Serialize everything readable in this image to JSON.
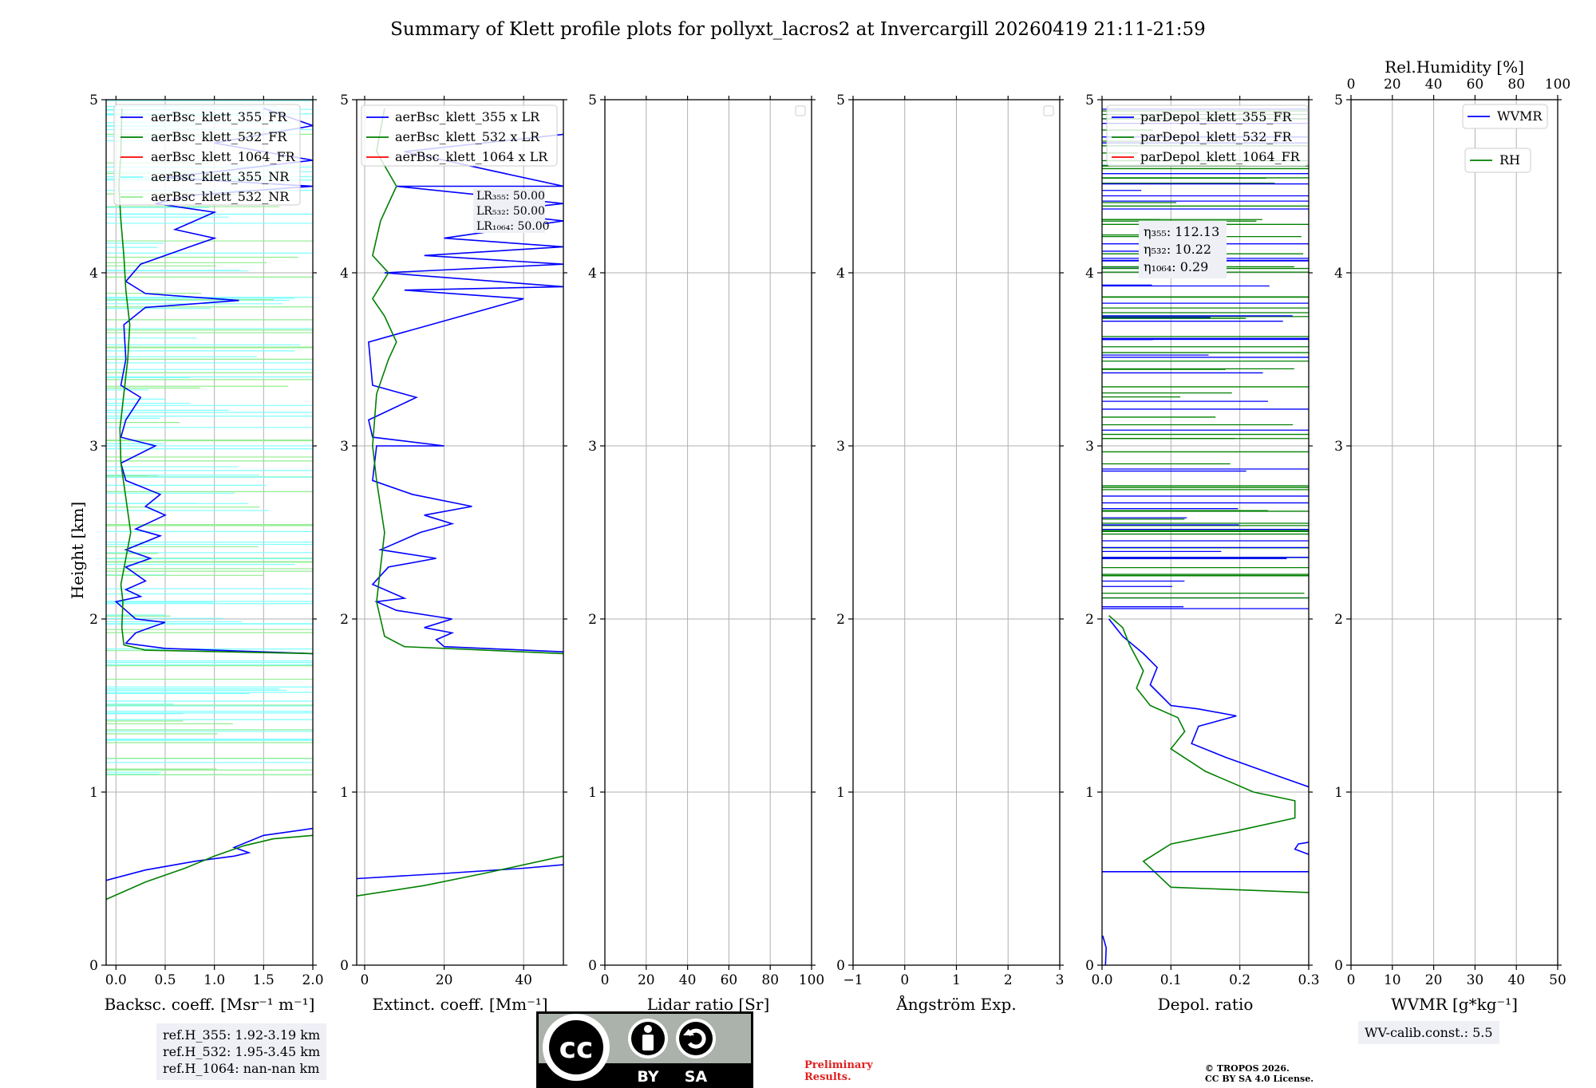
{
  "figure": {
    "title": "Summary of Klett profile plots for pollyxt_lacros2 at Invercargill 20260419 21:11-21:59",
    "ylabel": "Height [km]",
    "ref_heights": [
      "ref.H_355: 1.92-3.19 km",
      "ref.H_532: 1.95-3.45 km",
      "ref.H_1064: nan-nan km"
    ],
    "wv_calib": "WV-calib.const.: 5.5",
    "preliminary": [
      "Preliminary",
      "Results."
    ],
    "copyright": [
      "© TROPOS 2026.",
      "CC BY SA 4.0 License."
    ],
    "license_badge": {
      "by": "BY",
      "sa": "SA",
      "cc": "cc"
    }
  },
  "colors": {
    "blue": "#0000ff",
    "green": "#008000",
    "red": "#ff0000",
    "cyan": "#7fffff",
    "lightgreen": "#90ee90",
    "grid": "#b0b0b0",
    "legend_bg": "#ffffff",
    "ann_bg": "#eef0f6"
  },
  "chart_data": [
    {
      "type": "line",
      "name": "backscatter",
      "xlabel": "Backsc. coeff. [Msr⁻¹ m⁻¹]",
      "xlim": [
        -0.1,
        2.0
      ],
      "ylim": [
        0,
        5
      ],
      "xticks": [
        0.0,
        0.5,
        1.0,
        1.5,
        2.0
      ],
      "xticklabels": [
        "0.0",
        "0.5",
        "1.0",
        "1.5",
        "2.0"
      ],
      "yticks": [
        0,
        1,
        2,
        3,
        4,
        5
      ],
      "legend": [
        "aerBsc_klett_355_FR",
        "aerBsc_klett_532_FR",
        "aerBsc_klett_1064_FR",
        "aerBsc_klett_355_NR",
        "aerBsc_klett_532_NR"
      ],
      "series": [
        {
          "name": "aerBsc_klett_355_FR",
          "color": "blue",
          "points": [
            [
              -0.1,
              0.49
            ],
            [
              0.3,
              0.55
            ],
            [
              0.8,
              0.6
            ],
            [
              1.2,
              0.63
            ],
            [
              1.35,
              0.65
            ],
            [
              1.2,
              0.68
            ],
            [
              1.5,
              0.75
            ],
            [
              2.0,
              0.79
            ]
          ]
        },
        {
          "name": "aerBsc_klett_532_FR",
          "color": "green",
          "points": [
            [
              -0.1,
              0.38
            ],
            [
              0.3,
              0.48
            ],
            [
              0.7,
              0.56
            ],
            [
              1.0,
              0.63
            ],
            [
              1.3,
              0.69
            ],
            [
              1.6,
              0.73
            ],
            [
              2.0,
              0.75
            ]
          ]
        },
        {
          "name": "aerBsc_klett_355_FR_upper",
          "color": "blue",
          "points": [
            [
              2.0,
              1.8
            ],
            [
              0.5,
              1.83
            ],
            [
              0.1,
              1.86
            ],
            [
              0.2,
              1.92
            ],
            [
              0.35,
              1.95
            ],
            [
              0.5,
              1.98
            ],
            [
              0.2,
              2.0
            ],
            [
              0.1,
              2.05
            ],
            [
              0.0,
              2.1
            ],
            [
              0.25,
              2.13
            ],
            [
              0.1,
              2.17
            ],
            [
              0.3,
              2.22
            ],
            [
              0.1,
              2.3
            ],
            [
              0.35,
              2.35
            ],
            [
              0.1,
              2.4
            ],
            [
              0.45,
              2.48
            ],
            [
              0.2,
              2.52
            ],
            [
              0.5,
              2.6
            ],
            [
              0.3,
              2.65
            ],
            [
              0.45,
              2.72
            ],
            [
              0.1,
              2.8
            ],
            [
              0.05,
              2.9
            ],
            [
              0.4,
              3.0
            ],
            [
              0.05,
              3.05
            ],
            [
              0.1,
              3.15
            ],
            [
              0.25,
              3.28
            ],
            [
              0.05,
              3.35
            ],
            [
              0.1,
              3.5
            ],
            [
              0.08,
              3.7
            ],
            [
              0.3,
              3.8
            ],
            [
              1.25,
              3.84
            ],
            [
              0.3,
              3.88
            ],
            [
              0.1,
              3.95
            ],
            [
              0.25,
              4.05
            ],
            [
              0.75,
              4.15
            ],
            [
              1.0,
              4.2
            ],
            [
              0.6,
              4.25
            ],
            [
              1.0,
              4.35
            ],
            [
              0.4,
              4.4
            ],
            [
              0.8,
              4.45
            ],
            [
              2.0,
              4.5
            ],
            [
              0.5,
              4.55
            ],
            [
              2.0,
              4.65
            ],
            [
              1.0,
              4.75
            ],
            [
              2.0,
              4.85
            ],
            [
              1.5,
              4.95
            ]
          ]
        },
        {
          "name": "aerBsc_klett_532_FR_upper",
          "color": "green",
          "points": [
            [
              2.0,
              1.8
            ],
            [
              0.3,
              1.82
            ],
            [
              0.08,
              1.85
            ],
            [
              0.06,
              1.95
            ],
            [
              0.07,
              2.1
            ],
            [
              0.05,
              2.2
            ],
            [
              0.1,
              2.35
            ],
            [
              0.15,
              2.5
            ],
            [
              0.1,
              2.7
            ],
            [
              0.05,
              2.9
            ],
            [
              0.04,
              3.1
            ],
            [
              0.08,
              3.3
            ],
            [
              0.12,
              3.5
            ],
            [
              0.14,
              3.7
            ],
            [
              0.1,
              3.9
            ],
            [
              0.08,
              4.1
            ],
            [
              0.05,
              4.3
            ],
            [
              0.03,
              4.5
            ],
            [
              0.05,
              4.7
            ],
            [
              0.06,
              4.95
            ]
          ]
        }
      ]
    },
    {
      "type": "line",
      "name": "extinction",
      "xlabel": "Extinct. coeff. [Mm⁻¹]",
      "xlim": [
        -2,
        50
      ],
      "ylim": [
        0,
        5
      ],
      "xticks": [
        0,
        20,
        40
      ],
      "xticklabels": [
        "0",
        "20",
        "40"
      ],
      "yticks": [
        0,
        1,
        2,
        3,
        4,
        5
      ],
      "legend": [
        "aerBsc_klett_355 x LR",
        "aerBsc_klett_532 x LR",
        "aerBsc_klett_1064 x LR"
      ],
      "annotation": [
        "LR₃₅₅: 50.00",
        "LR₅₃₂: 50.00",
        "LR₁₀₆₄: 50.00"
      ],
      "series": [
        {
          "name": "aerBsc_klett_355 x LR",
          "color": "blue",
          "points": [
            [
              -2,
              0.5
            ],
            [
              20,
              0.53
            ],
            [
              40,
              0.56
            ],
            [
              50,
              0.58
            ]
          ]
        },
        {
          "name": "aerBsc_klett_532 x LR",
          "color": "green",
          "points": [
            [
              -2,
              0.4
            ],
            [
              15,
              0.46
            ],
            [
              30,
              0.53
            ],
            [
              50,
              0.63
            ]
          ]
        },
        {
          "name": "aerBsc_klett_355 x LR_upper",
          "color": "blue",
          "points": [
            [
              50,
              1.81
            ],
            [
              20,
              1.84
            ],
            [
              18,
              1.88
            ],
            [
              22,
              1.92
            ],
            [
              15,
              1.95
            ],
            [
              22,
              2.0
            ],
            [
              8,
              2.05
            ],
            [
              3,
              2.1
            ],
            [
              10,
              2.12
            ],
            [
              2,
              2.2
            ],
            [
              6,
              2.3
            ],
            [
              18,
              2.35
            ],
            [
              4,
              2.4
            ],
            [
              14,
              2.5
            ],
            [
              22,
              2.55
            ],
            [
              15,
              2.6
            ],
            [
              27,
              2.65
            ],
            [
              12,
              2.72
            ],
            [
              2,
              2.8
            ],
            [
              3,
              3.0
            ],
            [
              20,
              3.0
            ],
            [
              2,
              3.05
            ],
            [
              1,
              3.15
            ],
            [
              13,
              3.28
            ],
            [
              2,
              3.35
            ],
            [
              1,
              3.6
            ],
            [
              40,
              3.85
            ],
            [
              10,
              3.9
            ],
            [
              50,
              3.92
            ],
            [
              5,
              4.0
            ],
            [
              50,
              4.05
            ],
            [
              15,
              4.1
            ],
            [
              50,
              4.15
            ],
            [
              20,
              4.2
            ],
            [
              50,
              4.3
            ],
            [
              30,
              4.35
            ],
            [
              50,
              4.4
            ],
            [
              8,
              4.5
            ],
            [
              50,
              4.5
            ],
            [
              10,
              4.7
            ],
            [
              50,
              4.8
            ]
          ]
        },
        {
          "name": "aerBsc_klett_532 x LR_upper",
          "color": "green",
          "points": [
            [
              50,
              1.8
            ],
            [
              10,
              1.84
            ],
            [
              5,
              1.9
            ],
            [
              4,
              2.0
            ],
            [
              3,
              2.1
            ],
            [
              4,
              2.3
            ],
            [
              5,
              2.5
            ],
            [
              3,
              2.8
            ],
            [
              2,
              3.0
            ],
            [
              3,
              3.3
            ],
            [
              6,
              3.5
            ],
            [
              8,
              3.6
            ],
            [
              5,
              3.75
            ],
            [
              2,
              3.85
            ],
            [
              6,
              4.0
            ],
            [
              2,
              4.1
            ],
            [
              4,
              4.3
            ],
            [
              8,
              4.5
            ],
            [
              3,
              4.7
            ],
            [
              5,
              4.95
            ]
          ]
        }
      ]
    },
    {
      "type": "line",
      "name": "lidar_ratio",
      "xlabel": "Lidar ratio [Sr]",
      "xlim": [
        0,
        100
      ],
      "ylim": [
        0,
        5
      ],
      "xticks": [
        0,
        20,
        40,
        60,
        80,
        100
      ],
      "xticklabels": [
        "0",
        "20",
        "40",
        "60",
        "80",
        "100"
      ],
      "yticks": [
        0,
        1,
        2,
        3,
        4,
        5
      ],
      "series": []
    },
    {
      "type": "line",
      "name": "angstrom",
      "xlabel": "Ångström Exp.",
      "xlim": [
        -1,
        3
      ],
      "ylim": [
        0,
        5
      ],
      "xticks": [
        -1,
        0,
        1,
        2,
        3
      ],
      "xticklabels": [
        "−1",
        "0",
        "1",
        "2",
        "3"
      ],
      "yticks": [
        0,
        1,
        2,
        3,
        4,
        5
      ],
      "series": []
    },
    {
      "type": "line",
      "name": "depol",
      "xlabel": "Depol. ratio",
      "xlim": [
        0,
        0.3
      ],
      "ylim": [
        0,
        5
      ],
      "xticks": [
        0.0,
        0.1,
        0.2,
        0.3
      ],
      "xticklabels": [
        "0.0",
        "0.1",
        "0.2",
        "0.3"
      ],
      "yticks": [
        0,
        1,
        2,
        3,
        4,
        5
      ],
      "legend": [
        "parDepol_klett_355_FR",
        "parDepol_klett_532_FR",
        "parDepol_klett_1064_FR"
      ],
      "annotation": [
        "η₃₅₅: 112.13",
        "η₅₃₂: 10.22",
        "η₁₀₆₄: 0.29"
      ],
      "series": [
        {
          "name": "parDepol_klett_355_FR",
          "color": "blue",
          "points": [
            [
              0.3,
              1.03
            ],
            [
              0.25,
              1.1
            ],
            [
              0.18,
              1.2
            ],
            [
              0.13,
              1.28
            ],
            [
              0.14,
              1.38
            ],
            [
              0.195,
              1.44
            ],
            [
              0.14,
              1.48
            ],
            [
              0.1,
              1.5
            ],
            [
              0.07,
              1.62
            ],
            [
              0.08,
              1.72
            ],
            [
              0.06,
              1.8
            ],
            [
              0.03,
              1.9
            ],
            [
              0.01,
              2.0
            ]
          ]
        },
        {
          "name": "parDepol_klett_532_FR",
          "color": "green",
          "points": [
            [
              0.3,
              0.42
            ],
            [
              0.1,
              0.45
            ],
            [
              0.06,
              0.6
            ],
            [
              0.1,
              0.7
            ],
            [
              0.2,
              0.78
            ],
            [
              0.28,
              0.85
            ],
            [
              0.28,
              0.95
            ],
            [
              0.22,
              1.0
            ],
            [
              0.15,
              1.12
            ],
            [
              0.1,
              1.25
            ],
            [
              0.12,
              1.35
            ],
            [
              0.11,
              1.43
            ],
            [
              0.07,
              1.5
            ],
            [
              0.05,
              1.6
            ],
            [
              0.06,
              1.7
            ],
            [
              0.04,
              1.85
            ],
            [
              0.03,
              1.95
            ],
            [
              0.01,
              2.02
            ]
          ]
        },
        {
          "name": "parDepol_klett_355_FR_low",
          "color": "blue",
          "points": [
            [
              0.001,
              0.17
            ],
            [
              0.006,
              0.1
            ],
            [
              0.005,
              0.0
            ]
          ]
        },
        {
          "name": "parDepol_355_spike",
          "color": "blue",
          "points": [
            [
              0.3,
              0.71
            ],
            [
              0.285,
              0.7
            ],
            [
              0.28,
              0.67
            ],
            [
              0.3,
              0.64
            ]
          ]
        },
        {
          "name": "parDepol_355_line",
          "color": "blue",
          "points": [
            [
              0.0,
              0.54
            ],
            [
              0.3,
              0.54
            ]
          ]
        }
      ]
    },
    {
      "type": "line",
      "name": "wvmr",
      "xlabel": "WVMR [g*kg⁻¹]",
      "xlim": [
        0,
        50
      ],
      "ylim": [
        0,
        5
      ],
      "xticks": [
        0,
        10,
        20,
        30,
        40,
        50
      ],
      "xticklabels": [
        "0",
        "10",
        "20",
        "30",
        "40",
        "50"
      ],
      "yticks": [
        0,
        1,
        2,
        3,
        4,
        5
      ],
      "x2label": "Rel.Humidity [%]",
      "x2lim": [
        0,
        100
      ],
      "x2ticks": [
        0,
        20,
        40,
        60,
        80,
        100
      ],
      "x2ticklabels": [
        "0",
        "20",
        "40",
        "60",
        "80",
        "100"
      ],
      "legend": [
        "WVMR",
        "RH"
      ],
      "series": []
    }
  ]
}
